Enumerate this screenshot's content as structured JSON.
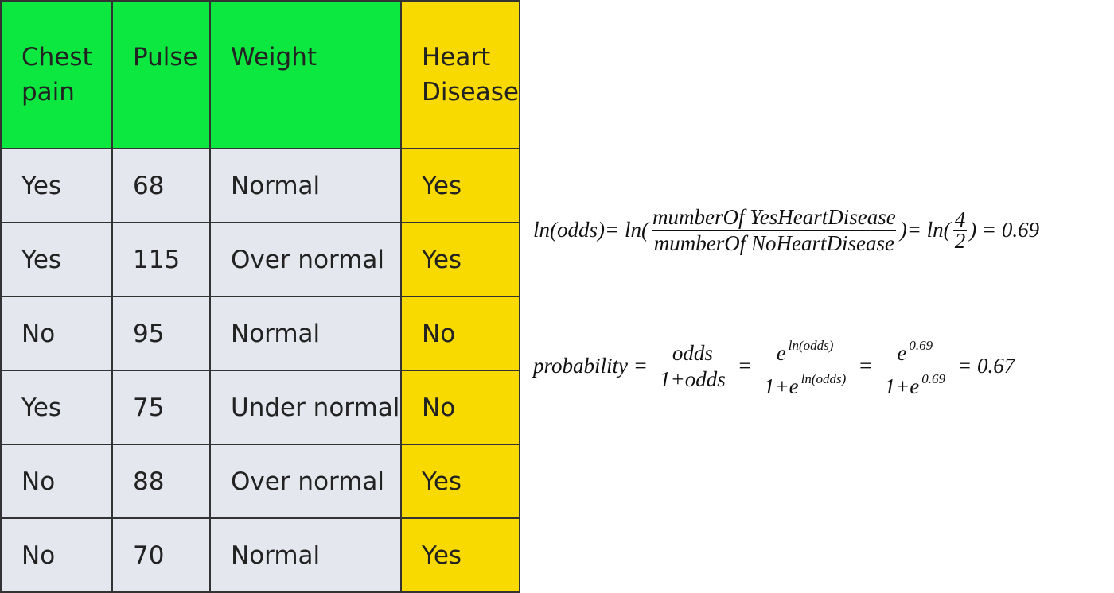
{
  "table": {
    "headers": [
      [
        "Chest",
        "pain"
      ],
      [
        "Pulse"
      ],
      [
        "Weight"
      ],
      [
        "Heart",
        "Disease"
      ]
    ],
    "rows": [
      [
        "Yes",
        "68",
        "Normal",
        "Yes"
      ],
      [
        "Yes",
        "115",
        "Over normal",
        "Yes"
      ],
      [
        "No",
        "95",
        "Normal",
        "No"
      ],
      [
        "Yes",
        "75",
        "Under normal",
        "No"
      ],
      [
        "No",
        "88",
        "Over normal",
        "Yes"
      ],
      [
        "No",
        "70",
        "Normal",
        "Yes"
      ]
    ],
    "colors": {
      "feature_header": "#0ce83f",
      "target_column": "#f8da00",
      "cell": "#e4e7ed"
    }
  },
  "formula1": {
    "lhs": "ln(odds)= ln(",
    "numerator": "mumberOf YesHeartDisease",
    "denominator": "mumberOf NoHeartDisease",
    "mid": ")= ln(",
    "num2": "4",
    "den2": "2",
    "end": ") = 0.69"
  },
  "formula2": {
    "lhs": "probability =",
    "frac1_num": "odds",
    "frac1_den": "1+odds",
    "eq1": "=",
    "frac2_num_base": "e",
    "frac2_num_exp": "ln(odds)",
    "frac2_den_base": "1+e",
    "frac2_den_exp": "ln(odds)",
    "eq2": "=",
    "frac3_num_base": "e",
    "frac3_num_exp": "0.69",
    "frac3_den_base": "1+e",
    "frac3_den_exp": "0.69",
    "result": "= 0.67"
  }
}
